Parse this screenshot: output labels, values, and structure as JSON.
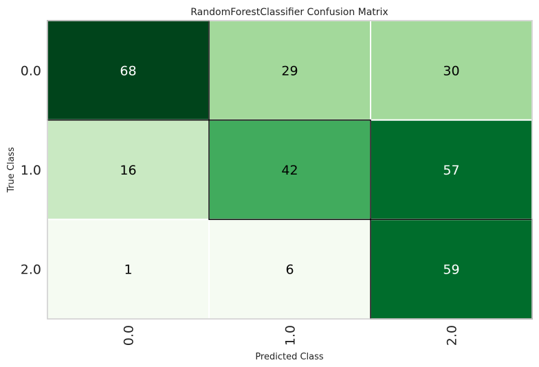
{
  "chart_data": {
    "type": "heatmap",
    "title": "RandomForestClassifier Confusion Matrix",
    "xlabel": "Predicted Class",
    "ylabel": "True Class",
    "x_categories": [
      "0.0",
      "1.0",
      "2.0"
    ],
    "y_categories": [
      "0.0",
      "1.0",
      "2.0"
    ],
    "values": [
      [
        68,
        29,
        30
      ],
      [
        16,
        42,
        57
      ],
      [
        1,
        6,
        59
      ]
    ],
    "colormap": "Greens",
    "cell_colors": [
      [
        "#00441b",
        "#a3d99b",
        "#a3d99b"
      ],
      [
        "#c9e9c2",
        "#41ab5d",
        "#006d2c"
      ],
      [
        "#f5fbf2",
        "#f5fbf2",
        "#006d2c"
      ]
    ],
    "label_colors": [
      [
        "#ffffff",
        "#000000",
        "#000000"
      ],
      [
        "#000000",
        "#000000",
        "#ffffff"
      ],
      [
        "#000000",
        "#000000",
        "#ffffff"
      ]
    ],
    "diagonal_outline_color": "#000000",
    "grid": false
  }
}
